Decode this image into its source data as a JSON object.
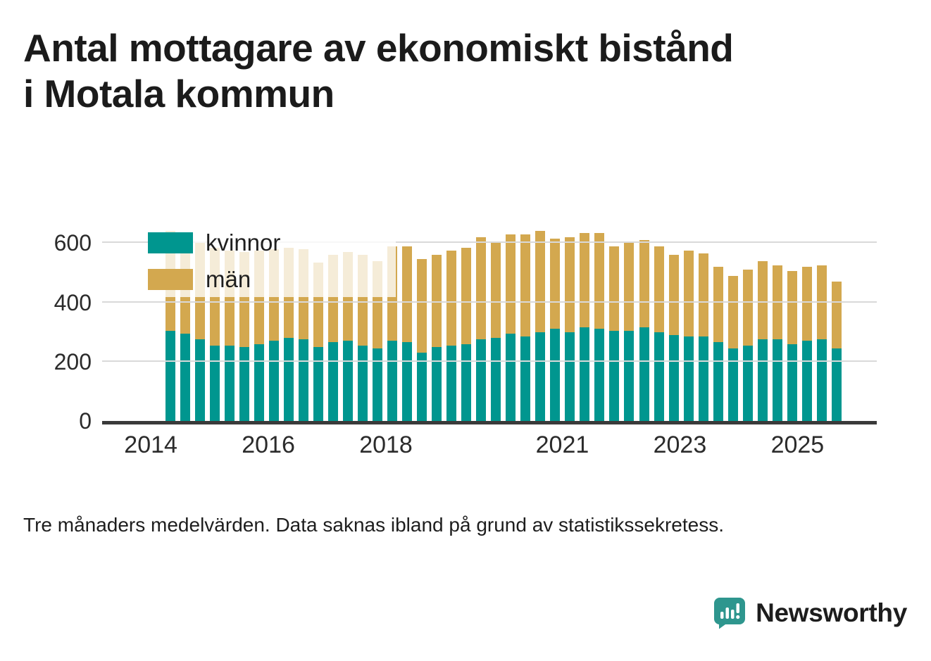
{
  "title_line1": "Antal mottagare av ekonomiskt bistånd",
  "title_line2": "i Motala kommun",
  "footnote": "Tre månaders medelvärden. Data saknas ibland på grund av statistikssekretess.",
  "brand": {
    "name": "Newsworthy",
    "color": "#2e968e"
  },
  "colors": {
    "axis": "#3a3a3a",
    "grid": "#d9d9d9",
    "text": "#1d1d1d"
  },
  "chart_data": {
    "type": "bar",
    "stacked": true,
    "title": "Antal mottagare av ekonomiskt bistånd i Motala kommun",
    "xlabel": "",
    "ylabel": "",
    "ylim": [
      0,
      660
    ],
    "yticks": [
      0,
      200,
      400,
      600
    ],
    "xticks": [
      "2014",
      "2016",
      "2018",
      "2021",
      "2023",
      "2025"
    ],
    "legend_position": "top-left",
    "x": [
      "2014 Q2",
      "2014 Q3",
      "2014 Q4",
      "2015 Q1",
      "2015 Q2",
      "2015 Q3",
      "2015 Q4",
      "2016 Q1",
      "2016 Q2",
      "2016 Q3",
      "2016 Q4",
      "2017 Q1",
      "2017 Q2",
      "2017 Q3",
      "2017 Q4",
      "2018 Q1",
      "2018 Q2",
      "2018 Q3",
      "2018 Q4",
      "2019 Q1",
      "2019 Q2",
      "2019 Q3",
      "2019 Q4",
      "2020 Q1",
      "2020 Q2",
      "2020 Q3",
      "2020 Q4",
      "2021 Q1",
      "2021 Q2",
      "2021 Q3",
      "2021 Q4",
      "2022 Q1",
      "2022 Q2",
      "2022 Q3",
      "2022 Q4",
      "2023 Q1",
      "2023 Q2",
      "2023 Q3",
      "2023 Q4",
      "2024 Q1",
      "2024 Q2",
      "2024 Q3",
      "2024 Q4",
      "2025 Q1",
      "2025 Q2",
      "2025 Q3"
    ],
    "series": [
      {
        "name": "kvinnor",
        "color": "#00968f",
        "values": [
          305,
          295,
          275,
          255,
          255,
          250,
          260,
          270,
          280,
          275,
          250,
          265,
          270,
          255,
          245,
          270,
          265,
          230,
          250,
          255,
          260,
          275,
          280,
          295,
          285,
          300,
          310,
          300,
          315,
          310,
          305,
          305,
          315,
          300,
          290,
          285,
          285,
          265,
          245,
          255,
          275,
          275,
          260,
          270,
          275,
          245
        ]
      },
      {
        "name": "män",
        "color": "#d3a84f",
        "values": [
          335,
          325,
          325,
          330,
          320,
          320,
          315,
          310,
          305,
          305,
          285,
          295,
          300,
          305,
          295,
          320,
          325,
          315,
          310,
          320,
          325,
          345,
          320,
          335,
          345,
          340,
          305,
          320,
          320,
          325,
          285,
          300,
          295,
          290,
          270,
          290,
          280,
          255,
          245,
          255,
          265,
          250,
          245,
          250,
          250,
          225
        ]
      }
    ]
  }
}
